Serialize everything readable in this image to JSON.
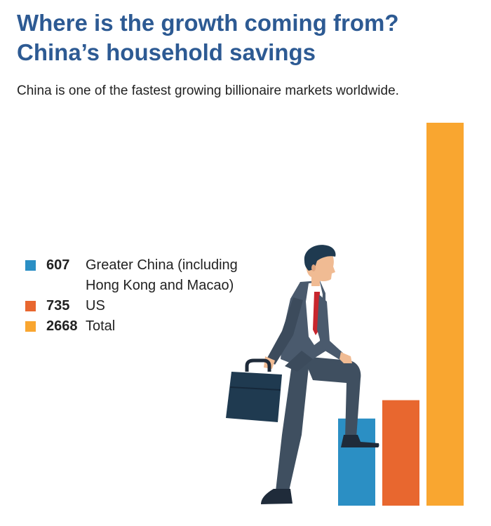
{
  "title_line1": "Where is the growth coming from?",
  "title_line2": "China’s household savings",
  "subtitle": "China is one of the fastest growing billionaire markets worldwide.",
  "chart_data": {
    "type": "bar",
    "categories": [
      "Greater China (including Hong Kong and Macao)",
      "US",
      "Total"
    ],
    "values": [
      607,
      735,
      2668
    ],
    "colors": [
      "#2b8fc4",
      "#e8672f",
      "#f9a630"
    ],
    "ylim": [
      0,
      2668
    ],
    "grid": false,
    "legend_position": "left",
    "legend": [
      {
        "value": "607",
        "label": "Greater China (including Hong Kong and Macao)",
        "color": "#2b8fc4"
      },
      {
        "value": "735",
        "label": "US",
        "color": "#e8672f"
      },
      {
        "value": "2668",
        "label": "Total",
        "color": "#f9a630"
      }
    ]
  },
  "colors": {
    "title": "#2d5a93",
    "text": "#222222"
  },
  "illustration": "businessman-stepping-up-illustration"
}
